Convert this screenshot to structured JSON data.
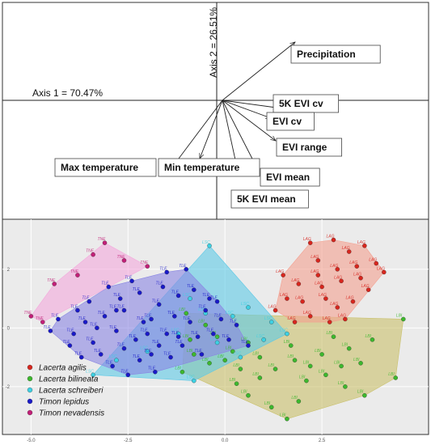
{
  "chart_data": [
    {
      "type": "biplot",
      "axis1_label": "Axis 1 = 70.47%",
      "axis2_label": "Axis 2 = 26.51%",
      "vectors": [
        {
          "name": "Precipitation",
          "dx": 0.9,
          "dy": 0.72
        },
        {
          "name": "5K EVI cv",
          "dx": 0.74,
          "dy": -0.1
        },
        {
          "name": "EVI cv",
          "dx": 0.6,
          "dy": -0.22
        },
        {
          "name": "EVI range",
          "dx": 0.66,
          "dy": -0.5
        },
        {
          "name": "EVI mean",
          "dx": 0.42,
          "dy": -0.82
        },
        {
          "name": "5K EVI mean",
          "dx": 0.2,
          "dy": -0.92
        },
        {
          "name": "Max temperature",
          "dx": -0.6,
          "dy": -0.8
        },
        {
          "name": "Min temperature",
          "dx": -0.28,
          "dy": -0.72
        }
      ]
    },
    {
      "type": "scatter",
      "xlim": [
        -5.3,
        5.0
      ],
      "ylim": [
        -3.3,
        3.4
      ],
      "x_ticks": [
        "-5.0",
        "-2.5",
        "0.0",
        "2.5"
      ],
      "y_ticks": [
        "2",
        "0",
        "-2"
      ],
      "legend_position": "bottom-left",
      "series": [
        {
          "name": "Lacerta agilis",
          "code": "LAG",
          "color": "#d7261e",
          "hull_color": "#f4a090",
          "points": [
            [
              2.8,
              3.0
            ],
            [
              3.2,
              2.6
            ],
            [
              2.2,
              2.9
            ],
            [
              3.6,
              2.8
            ],
            [
              3.9,
              2.2
            ],
            [
              3.4,
              2.1
            ],
            [
              2.9,
              2.0
            ],
            [
              2.4,
              1.8
            ],
            [
              1.9,
              1.5
            ],
            [
              2.5,
              1.4
            ],
            [
              3.0,
              1.6
            ],
            [
              3.5,
              1.7
            ],
            [
              4.1,
              1.9
            ],
            [
              2.6,
              1.0
            ],
            [
              2.0,
              0.9
            ],
            [
              1.6,
              1.0
            ],
            [
              2.9,
              0.7
            ],
            [
              3.3,
              0.9
            ],
            [
              1.3,
              0.6
            ],
            [
              2.2,
              0.4
            ],
            [
              2.7,
              0.2
            ],
            [
              3.1,
              0.3
            ],
            [
              1.8,
              0.2
            ],
            [
              2.4,
              2.3
            ],
            [
              1.5,
              1.8
            ],
            [
              3.7,
              1.3
            ]
          ]
        },
        {
          "name": "Lacerta bilineata",
          "code": "LBI",
          "color": "#3db82e",
          "hull_color": "#c9c06a",
          "points": [
            [
              4.6,
              0.3
            ],
            [
              4.4,
              -1.7
            ],
            [
              3.6,
              -2.3
            ],
            [
              3.1,
              -2.0
            ],
            [
              2.6,
              -1.6
            ],
            [
              2.2,
              -1.3
            ],
            [
              1.8,
              -1.1
            ],
            [
              1.3,
              -1.4
            ],
            [
              0.9,
              -1.7
            ],
            [
              0.4,
              -1.4
            ],
            [
              0.0,
              -1.1
            ],
            [
              -0.4,
              -1.2
            ],
            [
              -0.8,
              -0.9
            ],
            [
              1.7,
              -0.6
            ],
            [
              2.5,
              -0.9
            ],
            [
              3.2,
              -0.7
            ],
            [
              3.8,
              -0.4
            ],
            [
              0.6,
              -0.5
            ],
            [
              -0.2,
              -0.3
            ],
            [
              1.9,
              -2.5
            ],
            [
              0.6,
              -2.3
            ],
            [
              1.2,
              -2.7
            ],
            [
              2.8,
              -0.3
            ],
            [
              3.5,
              -1.2
            ],
            [
              -0.9,
              -0.4
            ],
            [
              0.2,
              -0.8
            ],
            [
              -1.1,
              -1.5
            ],
            [
              1.6,
              -3.1
            ],
            [
              2.1,
              -1.8
            ],
            [
              0.9,
              -1.0
            ],
            [
              -0.5,
              0.1
            ],
            [
              -1.0,
              0.5
            ],
            [
              3.0,
              -1.3
            ],
            [
              0.3,
              -1.9
            ]
          ]
        },
        {
          "name": "Lacerta schreiberi",
          "code": "LSC",
          "color": "#3ed1e3",
          "hull_color": "#5ec9e6",
          "points": [
            [
              -0.4,
              2.8
            ],
            [
              -0.9,
              1.0
            ],
            [
              -0.5,
              0.5
            ],
            [
              0.2,
              0.4
            ],
            [
              0.6,
              0.7
            ],
            [
              1.2,
              0.2
            ],
            [
              1.6,
              -0.2
            ],
            [
              1.0,
              -0.4
            ],
            [
              -0.2,
              -0.5
            ],
            [
              -1.2,
              -0.2
            ],
            [
              -2.0,
              -0.8
            ],
            [
              -2.8,
              -1.1
            ],
            [
              -3.4,
              -1.6
            ],
            [
              -0.8,
              -1.8
            ],
            [
              0.4,
              -1.0
            ]
          ]
        },
        {
          "name": "Timon lepidus",
          "code": "TLE",
          "color": "#1a1ac9",
          "hull_color": "#8a86e2",
          "points": [
            [
              -4.3,
              0.3
            ],
            [
              -3.9,
              -0.2
            ],
            [
              -3.6,
              0.2
            ],
            [
              -3.4,
              -0.5
            ],
            [
              -3.1,
              0.4
            ],
            [
              -2.8,
              -0.1
            ],
            [
              -2.6,
              0.6
            ],
            [
              -2.3,
              -0.4
            ],
            [
              -2.1,
              0.2
            ],
            [
              -1.9,
              -0.9
            ],
            [
              -1.7,
              0.8
            ],
            [
              -1.5,
              -0.2
            ],
            [
              -1.3,
              0.4
            ],
            [
              -1.1,
              -0.6
            ],
            [
              -0.9,
              0.2
            ],
            [
              -0.7,
              -0.3
            ],
            [
              -0.5,
              0.6
            ],
            [
              -0.3,
              -0.2
            ],
            [
              -0.1,
              0.3
            ],
            [
              0.1,
              -0.4
            ],
            [
              -3.2,
              -0.9
            ],
            [
              -2.9,
              -1.3
            ],
            [
              -2.5,
              -1.6
            ],
            [
              -2.2,
              -1.1
            ],
            [
              -1.8,
              -1.5
            ],
            [
              -1.4,
              -1.0
            ],
            [
              -3.7,
              -1.0
            ],
            [
              -4.0,
              -0.6
            ],
            [
              -2.7,
              1.0
            ],
            [
              -2.2,
              1.2
            ],
            [
              -1.6,
              1.4
            ],
            [
              -1.2,
              1.1
            ],
            [
              -0.8,
              1.3
            ],
            [
              -0.4,
              1.0
            ],
            [
              -3.5,
              0.9
            ],
            [
              -3.0,
              1.4
            ],
            [
              -2.4,
              1.6
            ],
            [
              -1.0,
              2.0
            ],
            [
              -1.5,
              1.9
            ],
            [
              -2.8,
              0.6
            ],
            [
              -1.9,
              0.3
            ],
            [
              -1.2,
              -0.3
            ],
            [
              -0.6,
              -0.9
            ],
            [
              0.3,
              0.1
            ],
            [
              0.6,
              -0.6
            ],
            [
              -2.0,
              -0.2
            ],
            [
              -3.3,
              0.0
            ],
            [
              -4.5,
              -0.1
            ],
            [
              -3.8,
              0.6
            ],
            [
              -1.7,
              -0.6
            ],
            [
              -2.6,
              -0.7
            ],
            [
              -0.2,
              0.9
            ]
          ]
        },
        {
          "name": "Timon nevadensis",
          "code": "TNE",
          "color": "#c21f78",
          "hull_color": "#f3a8dc",
          "points": [
            [
              -5.0,
              0.4
            ],
            [
              -4.4,
              1.5
            ],
            [
              -3.8,
              1.8
            ],
            [
              -3.1,
              2.9
            ],
            [
              -2.6,
              2.3
            ],
            [
              -2.0,
              2.1
            ],
            [
              -4.7,
              0.2
            ],
            [
              -3.4,
              2.5
            ]
          ]
        }
      ]
    }
  ],
  "legend": [
    {
      "label": "Lacerta agilis",
      "color": "#d7261e"
    },
    {
      "label": "Lacerta bilineata",
      "color": "#3db82e"
    },
    {
      "label": "Lacerta schreiberi",
      "color": "#3ed1e3"
    },
    {
      "label": "Timon lepidus",
      "color": "#1a1ac9"
    },
    {
      "label": "Timon nevadensis",
      "color": "#c21f78"
    }
  ]
}
